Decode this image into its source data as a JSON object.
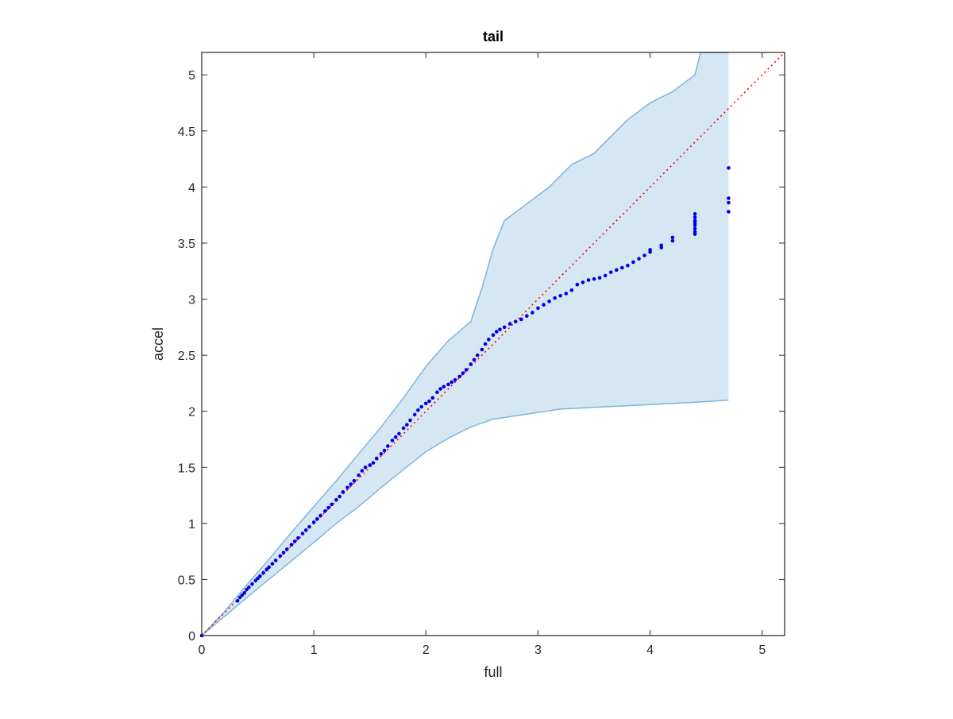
{
  "chart_data": {
    "type": "scatter",
    "title": "tail",
    "xlabel": "full",
    "ylabel": "accel",
    "xlim": [
      0,
      5.2
    ],
    "ylim": [
      0,
      5.2
    ],
    "xticks": [
      "0",
      "1",
      "2",
      "3",
      "4",
      "5"
    ],
    "yticks": [
      "0",
      "0.5",
      "1",
      "1.5",
      "2",
      "2.5",
      "3",
      "3.5",
      "4",
      "4.5",
      "5"
    ],
    "grid": false,
    "legend": "none",
    "colors": {
      "points": "#0000e6",
      "reference_line": "#ff0000",
      "band_fill": "#d6e7f4",
      "band_edge": "#7fb5dc",
      "axes": "#262626"
    },
    "reference_line": {
      "style": "dotted",
      "x": [
        0,
        5.2
      ],
      "y": [
        0,
        5.2
      ]
    },
    "confidence_band": {
      "upper": [
        [
          0,
          0
        ],
        [
          0.2,
          0.21
        ],
        [
          0.4,
          0.45
        ],
        [
          0.6,
          0.68
        ],
        [
          0.8,
          0.92
        ],
        [
          1.0,
          1.15
        ],
        [
          1.2,
          1.38
        ],
        [
          1.4,
          1.62
        ],
        [
          1.6,
          1.86
        ],
        [
          1.8,
          2.12
        ],
        [
          2.0,
          2.4
        ],
        [
          2.2,
          2.63
        ],
        [
          2.4,
          2.8
        ],
        [
          2.5,
          3.1
        ],
        [
          2.6,
          3.45
        ],
        [
          2.7,
          3.7
        ],
        [
          2.9,
          3.85
        ],
        [
          3.1,
          4.0
        ],
        [
          3.3,
          4.2
        ],
        [
          3.5,
          4.3
        ],
        [
          3.6,
          4.4
        ],
        [
          3.8,
          4.6
        ],
        [
          4.0,
          4.75
        ],
        [
          4.2,
          4.85
        ],
        [
          4.4,
          5.0
        ],
        [
          4.45,
          5.2
        ],
        [
          4.7,
          5.2
        ]
      ],
      "lower": [
        [
          0,
          0
        ],
        [
          0.5,
          0.42
        ],
        [
          1.0,
          0.83
        ],
        [
          1.2,
          1.0
        ],
        [
          1.4,
          1.15
        ],
        [
          1.6,
          1.32
        ],
        [
          1.8,
          1.48
        ],
        [
          2.0,
          1.64
        ],
        [
          2.2,
          1.76
        ],
        [
          2.4,
          1.86
        ],
        [
          2.6,
          1.93
        ],
        [
          2.8,
          1.96
        ],
        [
          3.0,
          1.99
        ],
        [
          3.2,
          2.02
        ],
        [
          3.4,
          2.03
        ],
        [
          3.6,
          2.04
        ],
        [
          3.8,
          2.05
        ],
        [
          4.0,
          2.06
        ],
        [
          4.2,
          2.07
        ],
        [
          4.4,
          2.08
        ],
        [
          4.7,
          2.1
        ]
      ]
    },
    "series": [
      {
        "x": [
          0,
          0.32,
          0.34,
          0.36,
          0.38,
          0.4,
          0.42,
          0.45,
          0.48,
          0.5,
          0.52,
          0.55,
          0.58,
          0.6,
          0.63,
          0.66,
          0.7,
          0.73,
          0.76,
          0.8,
          0.83,
          0.86,
          0.9,
          0.93,
          0.96,
          1.0,
          1.03,
          1.06,
          1.1,
          1.13,
          1.16,
          1.2,
          1.23,
          1.26,
          1.3,
          1.33,
          1.36,
          1.4,
          1.43,
          1.46,
          1.5,
          1.53,
          1.56,
          1.6,
          1.63,
          1.66,
          1.7,
          1.73,
          1.76,
          1.8,
          1.83,
          1.86,
          1.9,
          1.93,
          1.96,
          2.0,
          2.03,
          2.06,
          2.1,
          2.13,
          2.16,
          2.2,
          2.23,
          2.26,
          2.3,
          2.33,
          2.36,
          2.4,
          2.43,
          2.46,
          2.5,
          2.53,
          2.56,
          2.6,
          2.63,
          2.66,
          2.7,
          2.75,
          2.8,
          2.85,
          2.9,
          2.95,
          3.0,
          3.05,
          3.1,
          3.15,
          3.2,
          3.25,
          3.3,
          3.35,
          3.4,
          3.45,
          3.5,
          3.55,
          3.6,
          3.65,
          3.7,
          3.75,
          3.8,
          3.85,
          3.9,
          3.95,
          4.0,
          4.0,
          4.1,
          4.1,
          4.2,
          4.2,
          4.4,
          4.4,
          4.4,
          4.4,
          4.4,
          4.4,
          4.4,
          4.4,
          4.7,
          4.7,
          4.7,
          4.7
        ],
        "y": [
          0,
          0.31,
          0.34,
          0.36,
          0.38,
          0.41,
          0.43,
          0.46,
          0.49,
          0.51,
          0.53,
          0.56,
          0.59,
          0.61,
          0.64,
          0.67,
          0.71,
          0.74,
          0.77,
          0.81,
          0.84,
          0.87,
          0.91,
          0.94,
          0.97,
          1.01,
          1.04,
          1.07,
          1.11,
          1.14,
          1.17,
          1.21,
          1.24,
          1.28,
          1.32,
          1.35,
          1.38,
          1.43,
          1.47,
          1.5,
          1.52,
          1.54,
          1.58,
          1.62,
          1.65,
          1.69,
          1.74,
          1.77,
          1.8,
          1.85,
          1.88,
          1.92,
          1.97,
          2.01,
          2.04,
          2.07,
          2.09,
          2.12,
          2.17,
          2.2,
          2.22,
          2.24,
          2.26,
          2.28,
          2.31,
          2.34,
          2.37,
          2.42,
          2.46,
          2.5,
          2.55,
          2.6,
          2.64,
          2.68,
          2.71,
          2.73,
          2.75,
          2.78,
          2.8,
          2.82,
          2.85,
          2.88,
          2.92,
          2.95,
          2.98,
          3.01,
          3.03,
          3.05,
          3.08,
          3.13,
          3.15,
          3.17,
          3.18,
          3.19,
          3.21,
          3.24,
          3.26,
          3.28,
          3.3,
          3.33,
          3.36,
          3.39,
          3.42,
          3.44,
          3.48,
          3.46,
          3.52,
          3.55,
          3.58,
          3.6,
          3.63,
          3.66,
          3.68,
          3.7,
          3.73,
          3.76,
          3.78,
          3.86,
          3.9,
          4.17
        ]
      }
    ]
  }
}
